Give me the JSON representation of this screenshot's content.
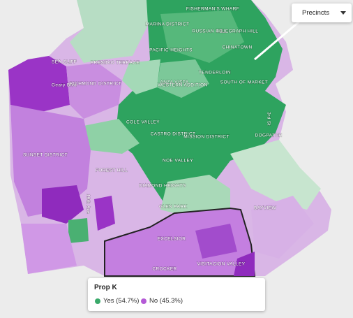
{
  "control": {
    "label": "Precincts"
  },
  "map": {
    "labels": [
      "SEA CLIFF",
      "Geary Blvd",
      "RICHMOND DISTRICT",
      "PRESIDIO TERRACE",
      "MARINA DISTRICT",
      "RUSSIAN HILL",
      "FISHERMAN'S WHARF",
      "TELEGRAPH HILL",
      "CHINATOWN",
      "PACIFIC HEIGHTS",
      "TENDERLOIN",
      "ANZA VISTA",
      "WESTERN ADDITION",
      "SOUTH OF MARKET",
      "COLE VALLEY",
      "CASTRO DISTRICT",
      "MISSION DISTRICT",
      "DOGPATCH",
      "3rd St",
      "SUNSET DISTRICT",
      "FOREST HILL",
      "NOE VALLEY",
      "DIAMOND HEIGHTS",
      "GLEN PARK",
      "19th Ave",
      "BAYVIEW",
      "EXCELSIOR",
      "VISITACION VALLEY",
      "CROCKER"
    ]
  },
  "legend": {
    "title": "Prop K",
    "items": [
      {
        "label": "Yes (54.7%)",
        "color": "#3aa96a"
      },
      {
        "label": "No (45.3%)",
        "color": "#b45ad6"
      }
    ]
  }
}
